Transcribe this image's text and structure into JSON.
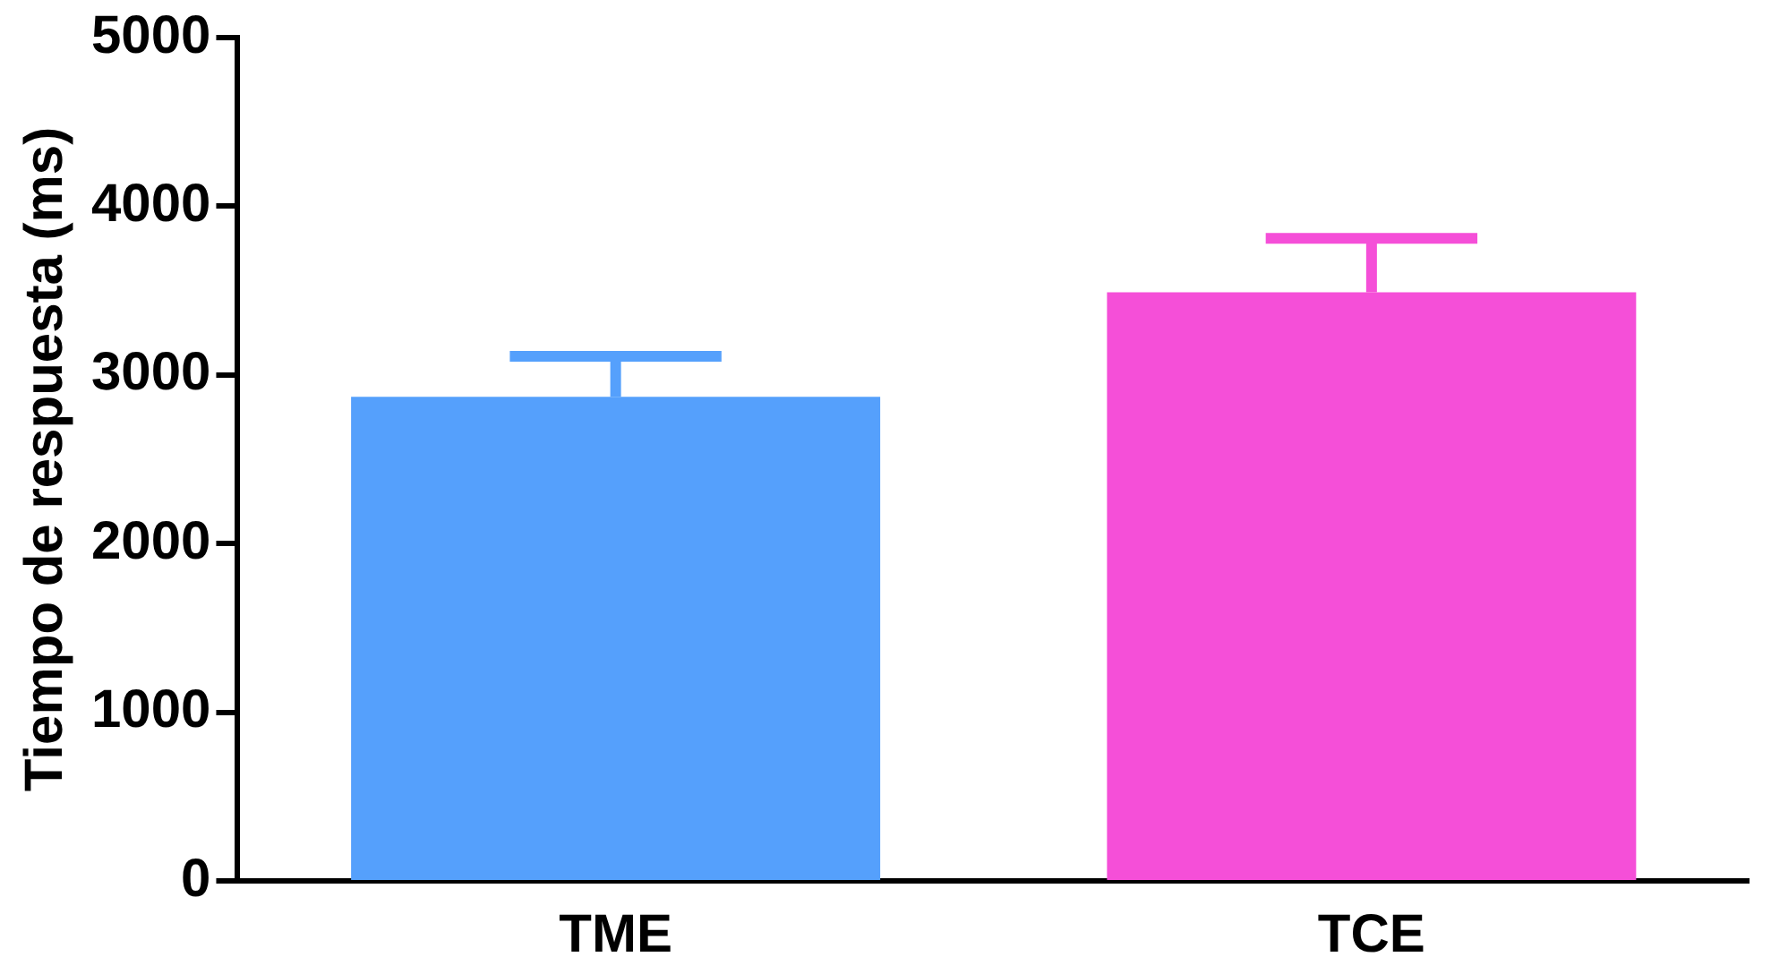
{
  "chart_data": {
    "type": "bar",
    "ylabel": "Tiempo de respuesta (ms)",
    "categories": [
      "TME",
      "TCE"
    ],
    "values": [
      2870,
      3490
    ],
    "colors": [
      "#55a0fc",
      "#f54fd8"
    ],
    "errors": [
      [
        2870,
        3110
      ],
      [
        3490,
        3810
      ]
    ],
    "ylim": [
      0,
      5000
    ],
    "yticks": [
      0,
      1000,
      2000,
      3000,
      4000,
      5000
    ],
    "grid": false,
    "legend": false
  }
}
